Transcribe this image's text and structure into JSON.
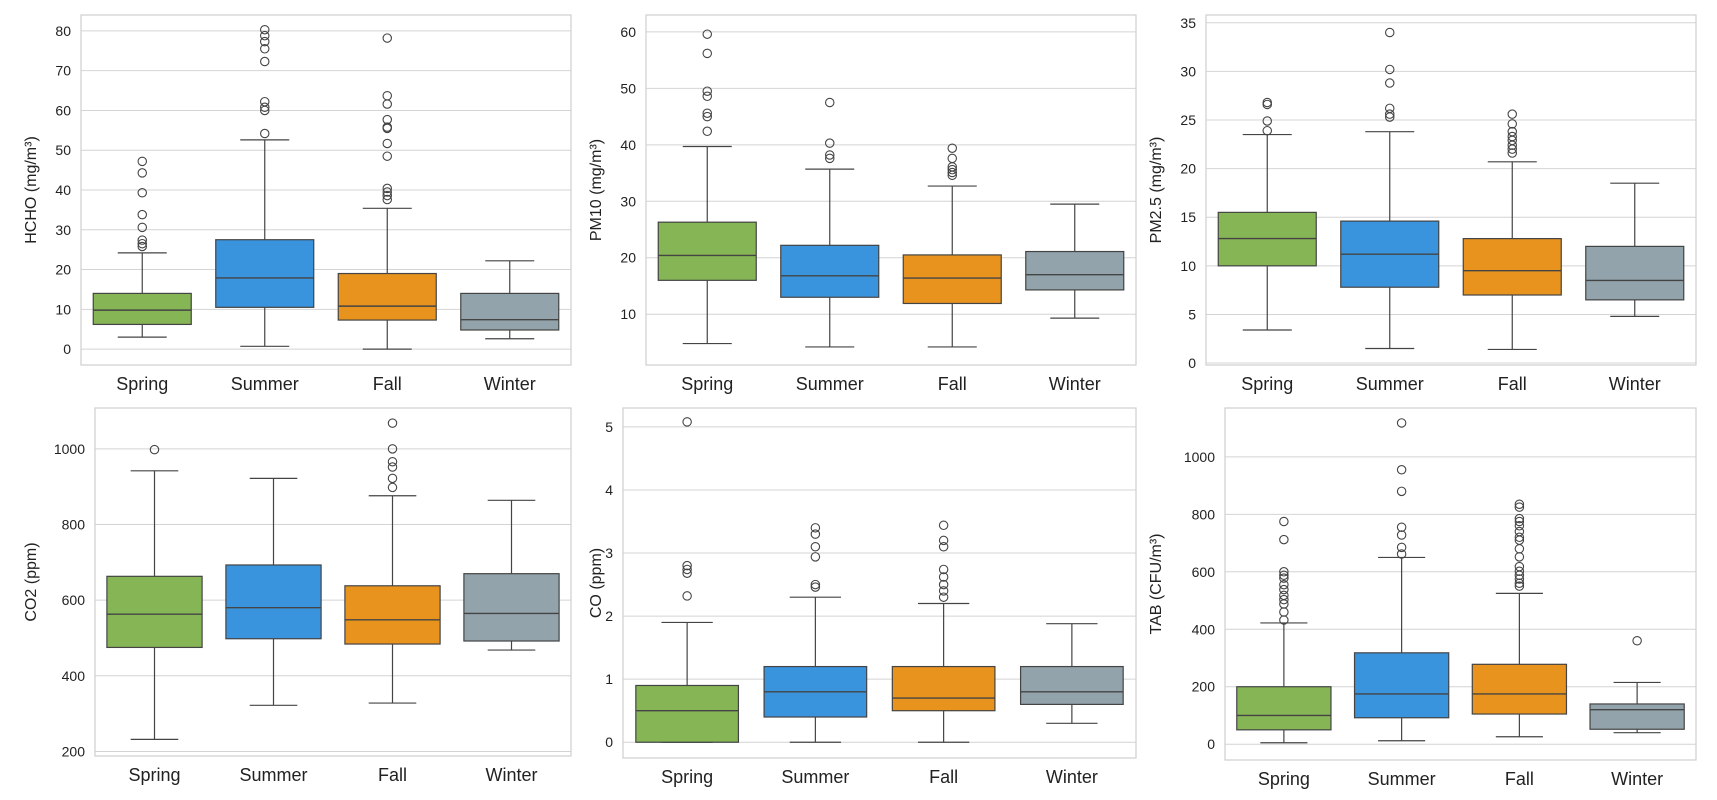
{
  "colors": {
    "Spring": "#86b555",
    "Summer": "#3a93dd",
    "Fall": "#e8931e",
    "Winter": "#92a3ab"
  },
  "chart_data": [
    {
      "type": "box",
      "categories": [
        "Spring",
        "Summer",
        "Fall",
        "Winter"
      ],
      "ylabel": "HCHO (mg/m³)",
      "ylim": [
        -4,
        84
      ],
      "yticks": [
        0,
        10,
        20,
        30,
        40,
        50,
        60,
        70,
        80
      ],
      "grid": true,
      "boxes": [
        {
          "category": "Spring",
          "whislo": 3,
          "q1": 6.2,
          "med": 9.8,
          "q3": 14,
          "whishi": 24.2,
          "fliers": [
            25.8,
            26.5,
            27.4,
            30.6,
            33.8,
            39.3,
            44.3,
            47.2
          ]
        },
        {
          "category": "Summer",
          "whislo": 0.7,
          "q1": 10.5,
          "med": 17.9,
          "q3": 27.5,
          "whishi": 52.6,
          "fliers": [
            54.2,
            60.0,
            60.8,
            62.2,
            72.3,
            75.5,
            77.3,
            78.8,
            80.3
          ]
        },
        {
          "category": "Fall",
          "whislo": 0,
          "q1": 7.3,
          "med": 10.8,
          "q3": 19,
          "whishi": 35.4,
          "fliers": [
            37.6,
            38.6,
            39.5,
            40.4,
            48.5,
            51.7,
            55.5,
            55.8,
            57.7,
            61.6,
            63.7,
            78.2
          ]
        },
        {
          "category": "Winter",
          "whislo": 2.6,
          "q1": 4.8,
          "med": 7.4,
          "q3": 14,
          "whishi": 22.2,
          "fliers": []
        }
      ]
    },
    {
      "type": "box",
      "categories": [
        "Spring",
        "Summer",
        "Fall",
        "Winter"
      ],
      "ylabel": "PM10 (mg/m³)",
      "ylim": [
        1,
        63
      ],
      "yticks": [
        10,
        20,
        30,
        40,
        50,
        60
      ],
      "grid": true,
      "boxes": [
        {
          "category": "Spring",
          "whislo": 4.8,
          "q1": 16,
          "med": 20.4,
          "q3": 26.3,
          "whishi": 39.7,
          "fliers": [
            42.4,
            45.0,
            45.6,
            48.6,
            49.5,
            56.2,
            59.6
          ]
        },
        {
          "category": "Summer",
          "whislo": 4.2,
          "q1": 13,
          "med": 16.8,
          "q3": 22.2,
          "whishi": 35.7,
          "fliers": [
            37.6,
            38.2,
            40.3,
            47.5
          ]
        },
        {
          "category": "Fall",
          "whislo": 4.2,
          "q1": 11.9,
          "med": 16.4,
          "q3": 20.5,
          "whishi": 32.7,
          "fliers": [
            34.6,
            35.1,
            35.6,
            36.1,
            37.6,
            39.4
          ]
        },
        {
          "category": "Winter",
          "whislo": 9.3,
          "q1": 14.3,
          "med": 17,
          "q3": 21.1,
          "whishi": 29.5,
          "fliers": []
        }
      ]
    },
    {
      "type": "box",
      "categories": [
        "Spring",
        "Summer",
        "Fall",
        "Winter"
      ],
      "ylabel": "PM2.5 (mg/m³)",
      "ylim": [
        -0.2,
        35.8
      ],
      "yticks": [
        0,
        5,
        10,
        15,
        20,
        25,
        30,
        35
      ],
      "grid": true,
      "boxes": [
        {
          "category": "Spring",
          "whislo": 3.4,
          "q1": 10,
          "med": 12.8,
          "q3": 15.5,
          "whishi": 23.5,
          "fliers": [
            23.9,
            24.9,
            26.6,
            26.8
          ]
        },
        {
          "category": "Summer",
          "whislo": 1.5,
          "q1": 7.8,
          "med": 11.2,
          "q3": 14.6,
          "whishi": 23.8,
          "fliers": [
            25.3,
            25.6,
            26.2,
            28.8,
            30.2,
            34.0
          ]
        },
        {
          "category": "Fall",
          "whislo": 1.4,
          "q1": 7,
          "med": 9.5,
          "q3": 12.8,
          "whishi": 20.7,
          "fliers": [
            21.6,
            22.0,
            22.4,
            22.9,
            23.3,
            23.8,
            24.6,
            25.6
          ]
        },
        {
          "category": "Winter",
          "whislo": 4.8,
          "q1": 6.5,
          "med": 8.5,
          "q3": 12,
          "whishi": 18.5,
          "fliers": []
        }
      ]
    },
    {
      "type": "box",
      "categories": [
        "Spring",
        "Summer",
        "Fall",
        "Winter"
      ],
      "ylabel": "CO2 (ppm)",
      "ylim": [
        188,
        1108
      ],
      "yticks": [
        200,
        400,
        600,
        800,
        1000
      ],
      "grid": true,
      "boxes": [
        {
          "category": "Spring",
          "whislo": 232,
          "q1": 475,
          "med": 563,
          "q3": 663,
          "whishi": 942,
          "fliers": [
            998
          ]
        },
        {
          "category": "Summer",
          "whislo": 322,
          "q1": 498,
          "med": 580,
          "q3": 693,
          "whishi": 922,
          "fliers": []
        },
        {
          "category": "Fall",
          "whislo": 328,
          "q1": 484,
          "med": 548,
          "q3": 638,
          "whishi": 876,
          "fliers": [
            898,
            922,
            952,
            966,
            1000,
            1068
          ]
        },
        {
          "category": "Winter",
          "whislo": 468,
          "q1": 492,
          "med": 565,
          "q3": 670,
          "whishi": 864,
          "fliers": []
        }
      ]
    },
    {
      "type": "box",
      "categories": [
        "Spring",
        "Summer",
        "Fall",
        "Winter"
      ],
      "ylabel": "CO (ppm)",
      "ylim": [
        -0.25,
        5.3
      ],
      "yticks": [
        0,
        1,
        2,
        3,
        4,
        5
      ],
      "grid": true,
      "boxes": [
        {
          "category": "Spring",
          "whislo": 0,
          "q1": 0,
          "med": 0.5,
          "q3": 0.9,
          "whishi": 1.9,
          "fliers": [
            2.32,
            2.68,
            2.74,
            2.8,
            5.08
          ]
        },
        {
          "category": "Summer",
          "whislo": 0,
          "q1": 0.4,
          "med": 0.8,
          "q3": 1.2,
          "whishi": 2.3,
          "fliers": [
            2.46,
            2.5,
            2.94,
            3.1,
            3.3,
            3.4
          ]
        },
        {
          "category": "Fall",
          "whislo": 0,
          "q1": 0.5,
          "med": 0.7,
          "q3": 1.2,
          "whishi": 2.2,
          "fliers": [
            2.3,
            2.4,
            2.5,
            2.62,
            2.74,
            3.1,
            3.2,
            3.44
          ]
        },
        {
          "category": "Winter",
          "whislo": 0.3,
          "q1": 0.6,
          "med": 0.8,
          "q3": 1.2,
          "whishi": 1.88,
          "fliers": []
        }
      ]
    },
    {
      "type": "box",
      "categories": [
        "Spring",
        "Summer",
        "Fall",
        "Winter"
      ],
      "ylabel": "TAB (CFU/m³)",
      "ylim": [
        -55,
        1170
      ],
      "yticks": [
        0,
        200,
        400,
        600,
        800,
        1000
      ],
      "grid": true,
      "boxes": [
        {
          "category": "Spring",
          "whislo": 5,
          "q1": 50,
          "med": 100,
          "q3": 200,
          "whishi": 422,
          "fliers": [
            432,
            460,
            488,
            503,
            518,
            538,
            555,
            578,
            588,
            600,
            712,
            775
          ]
        },
        {
          "category": "Summer",
          "whislo": 12,
          "q1": 92,
          "med": 175,
          "q3": 318,
          "whishi": 650,
          "fliers": [
            662,
            685,
            728,
            755,
            880,
            955,
            1118
          ]
        },
        {
          "category": "Fall",
          "whislo": 26,
          "q1": 105,
          "med": 175,
          "q3": 278,
          "whishi": 525,
          "fliers": [
            550,
            560,
            575,
            588,
            602,
            618,
            652,
            680,
            710,
            720,
            740,
            760,
            775,
            785,
            825,
            835
          ]
        },
        {
          "category": "Winter",
          "whislo": 40,
          "q1": 52,
          "med": 120,
          "q3": 140,
          "whishi": 215,
          "fliers": [
            360
          ]
        }
      ]
    }
  ]
}
